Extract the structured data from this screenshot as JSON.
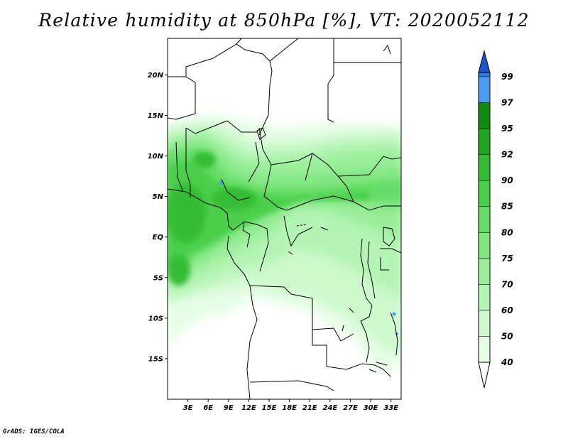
{
  "title": "Relative humidity at 850hPa [%], VT: 2020052112",
  "credit": "GrADS: IGES/COLA",
  "map": {
    "lon_range": [
      0,
      34.5
    ],
    "lat_range": [
      -20,
      24.5
    ],
    "lat_labels": [
      {
        "lat": 20,
        "text": "20N"
      },
      {
        "lat": 15,
        "text": "15N"
      },
      {
        "lat": 10,
        "text": "10N"
      },
      {
        "lat": 5,
        "text": "5N"
      },
      {
        "lat": 0,
        "text": "EQ"
      },
      {
        "lat": -5,
        "text": "5S"
      },
      {
        "lat": -10,
        "text": "10S"
      },
      {
        "lat": -15,
        "text": "15S"
      }
    ],
    "lon_labels": [
      {
        "lon": 3,
        "text": "3E"
      },
      {
        "lon": 6,
        "text": "6E"
      },
      {
        "lon": 9,
        "text": "9E"
      },
      {
        "lon": 12,
        "text": "12E"
      },
      {
        "lon": 15,
        "text": "15E"
      },
      {
        "lon": 18,
        "text": "18E"
      },
      {
        "lon": 21,
        "text": "21E"
      },
      {
        "lon": 24,
        "text": "24E"
      },
      {
        "lon": 27,
        "text": "27E"
      },
      {
        "lon": 30,
        "text": "30E"
      },
      {
        "lon": 33,
        "text": "33E"
      }
    ]
  },
  "colorbar": {
    "levels": [
      {
        "label": "40",
        "color": "#e6fde6"
      },
      {
        "label": "50",
        "color": "#cdf9cd"
      },
      {
        "label": "60",
        "color": "#b4f4b4"
      },
      {
        "label": "70",
        "color": "#9aee9a"
      },
      {
        "label": "75",
        "color": "#80e680"
      },
      {
        "label": "80",
        "color": "#66dd66"
      },
      {
        "label": "85",
        "color": "#4ccf4c"
      },
      {
        "label": "90",
        "color": "#34bc34"
      },
      {
        "label": "92",
        "color": "#1ea41e"
      },
      {
        "label": "95",
        "color": "#108a10"
      },
      {
        "label": "97",
        "color": "#4c9cf2"
      },
      {
        "label": "99",
        "color": "#2c78e4"
      }
    ],
    "top_color": "#1a58cc"
  }
}
